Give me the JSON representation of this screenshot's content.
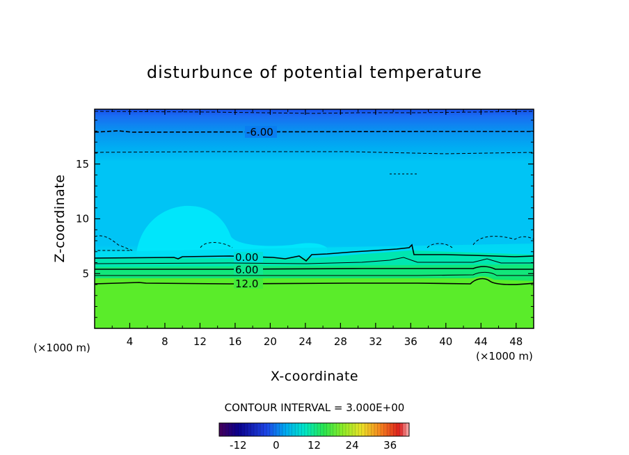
{
  "chart_data": {
    "type": "heatmap",
    "title": "disturbunce of potential temperature",
    "xlabel": "X-coordinate",
    "ylabel": "Z-coordinate",
    "x_unit": "(×1000 m)",
    "xlim": [
      0,
      50
    ],
    "ylim": [
      0,
      20
    ],
    "x_ticks": [
      4,
      8,
      12,
      16,
      20,
      24,
      28,
      32,
      36,
      40,
      44,
      48
    ],
    "y_ticks": [
      5,
      10,
      15
    ],
    "contour_interval_text": "CONTOUR INTERVAL = 3.000E+00",
    "contour_labels": [
      {
        "text": "-6.00",
        "x": 19.5,
        "z": 17.9
      },
      {
        "text": "0.00",
        "x": 17.5,
        "z": 6.4
      },
      {
        "text": "6.00",
        "x": 17.5,
        "z": 5.4
      },
      {
        "text": "12.0",
        "x": 17.5,
        "z": 4.1
      }
    ],
    "colorbar": {
      "min": -18,
      "max": 42,
      "step": 3,
      "tick_values": [
        -12,
        0,
        12,
        24,
        36
      ],
      "tick_labels": [
        "-12",
        "0",
        "12",
        "24",
        "36"
      ]
    },
    "colors": {
      "top_blue": "#1a5cf0",
      "upper_blue": "#0aa0ef",
      "mid_cyan": "#00c4f5",
      "bright_cyan": "#00f0ff",
      "teal_green": "#00e6a0",
      "green": "#1ee66e",
      "lime": "#66ee22"
    },
    "grid": false
  }
}
